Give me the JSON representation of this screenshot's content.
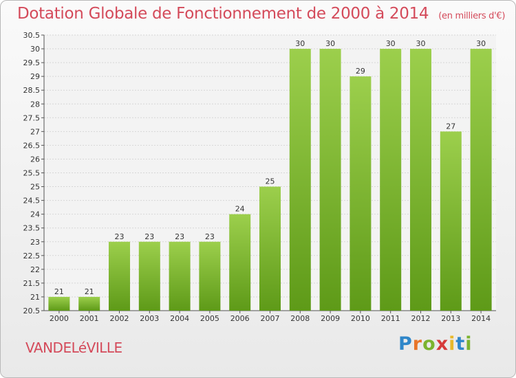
{
  "title": "Dotation Globale de Fonctionnement de 2000 à 2014",
  "subtitle": "(en milliers d'€)",
  "place": "VANDELéVILLE",
  "logo": {
    "p": "P",
    "r": "r",
    "o": "o",
    "x": "x",
    "i": "i",
    "t": "t",
    "i2": "i"
  },
  "colors": {
    "bar_top": "#9ccf4c",
    "bar_bottom": "#5e9a18",
    "title": "#d44a5a"
  },
  "chart_data": {
    "type": "bar",
    "categories": [
      "2000",
      "2001",
      "2002",
      "2003",
      "2004",
      "2005",
      "2006",
      "2007",
      "2008",
      "2009",
      "2010",
      "2011",
      "2012",
      "2013",
      "2014"
    ],
    "values": [
      21,
      21,
      23,
      23,
      23,
      23,
      24,
      25,
      30,
      30,
      29,
      30,
      30,
      27,
      30
    ],
    "ylim": [
      20.5,
      30.5
    ],
    "yticks": [
      "20.5",
      "21",
      "21.5",
      "22",
      "22.5",
      "23",
      "23.5",
      "24",
      "24.5",
      "25",
      "25.5",
      "26",
      "26.5",
      "27",
      "27.5",
      "28",
      "28.5",
      "29",
      "29.5",
      "30",
      "30.5"
    ],
    "grid": true
  }
}
